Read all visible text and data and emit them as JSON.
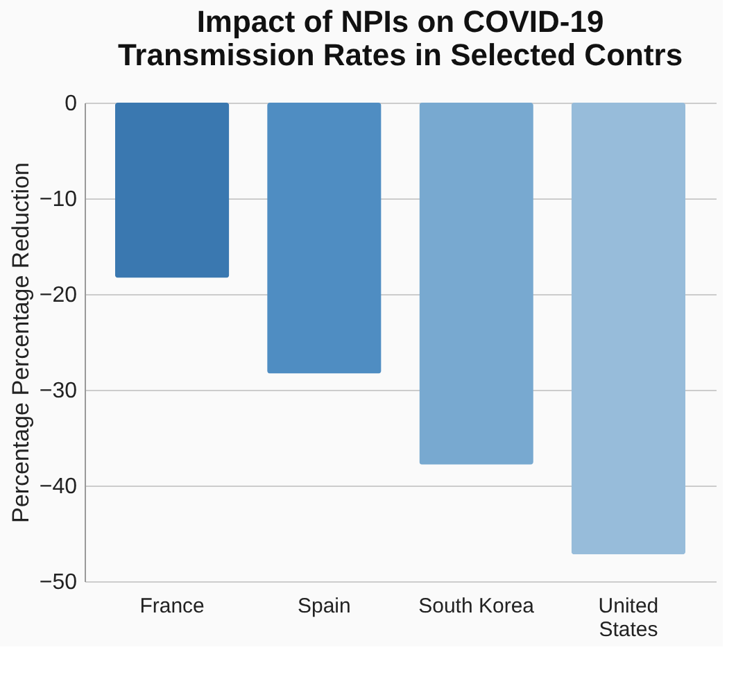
{
  "chart_data": {
    "type": "bar",
    "title": "Impact of NPIs on COVID-19 Transmission Rates in Selected Contrs",
    "ylabel": "Percentage Percentage Reduction",
    "categories": [
      "France",
      "Spain",
      "South Korea",
      "United States"
    ],
    "values": [
      -18.3,
      -28.3,
      -37.8,
      -47.2
    ],
    "colors": [
      "#3a78b0",
      "#4f8dc2",
      "#78a9d0",
      "#97bcda"
    ],
    "ylim": [
      -50,
      0
    ],
    "yticks": [
      -50,
      -40,
      -30,
      -20,
      -10,
      0
    ],
    "grid": "y"
  }
}
